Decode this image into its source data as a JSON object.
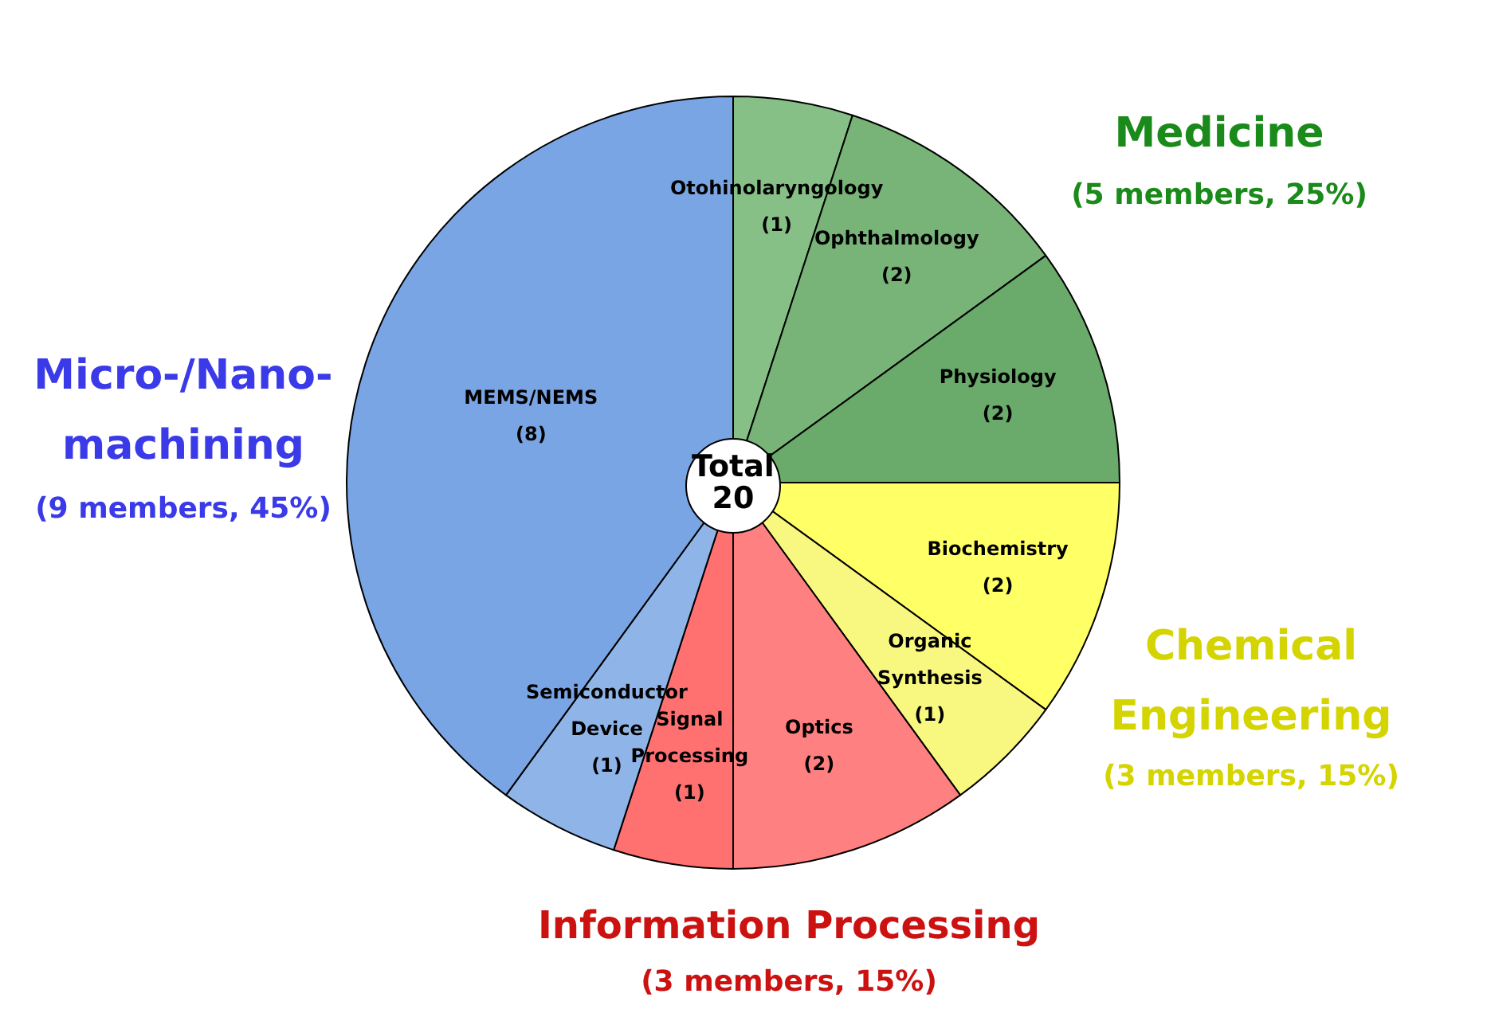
{
  "chart_data": {
    "type": "pie",
    "categories": [
      "Otohinolaryngology",
      "Ophthalmology",
      "Physiology",
      "Biochemistry",
      "Organic Synthesis",
      "Optics",
      "Signal Processing",
      "Semiconductor Device",
      "MEMS/NEMS"
    ],
    "values": [
      1,
      2,
      2,
      2,
      1,
      2,
      1,
      1,
      8
    ],
    "value_labels": [
      "(1)",
      "(2)",
      "(2)",
      "(2)",
      "(1)",
      "(2)",
      "(1)",
      "(1)",
      "(8)"
    ],
    "colors": [
      "#86c086",
      "#78b478",
      "#6aaa6a",
      "#ffff66",
      "#f8f880",
      "#ff8080",
      "#ff7070",
      "#8fb4e8",
      "#7aa5e4"
    ],
    "annotations": [
      "Medicine",
      "(5 members, 25%)",
      "Micro-/Nano-machining",
      "(9 members, 45%)",
      "Chemical Engineering",
      "(3 members, 15%)",
      "Information Processing",
      "(3 members, 15%)",
      "Total 20"
    ],
    "legend": false
  }
}
